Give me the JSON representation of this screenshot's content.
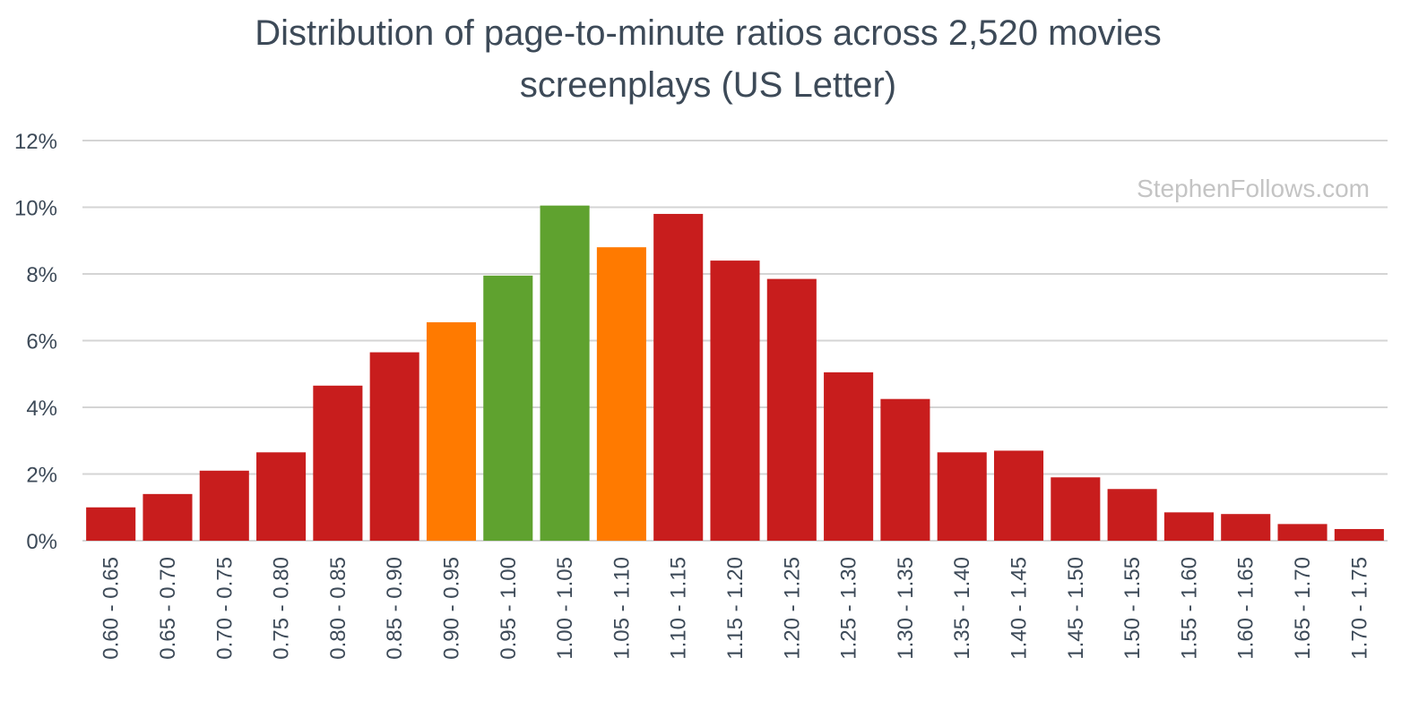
{
  "chart_data": {
    "type": "bar",
    "title_lines": [
      "Distribution of page-to-minute ratios across 2,520 movies",
      "screenplays (US Letter)"
    ],
    "watermark": "StephenFollows.com",
    "ylim": [
      0,
      12
    ],
    "ytick_values": [
      0,
      2,
      4,
      6,
      8,
      10,
      12
    ],
    "ytick_labels": [
      "0%",
      "2%",
      "4%",
      "6%",
      "8%",
      "10%",
      "12%"
    ],
    "grid": true,
    "categories": [
      "0.60 - 0.65",
      "0.65 - 0.70",
      "0.70 - 0.75",
      "0.75 - 0.80",
      "0.80 - 0.85",
      "0.85 - 0.90",
      "0.90 - 0.95",
      "0.95 - 1.00",
      "1.00 - 1.05",
      "1.05 - 1.10",
      "1.10 - 1.15",
      "1.15 - 1.20",
      "1.20 - 1.25",
      "1.25 - 1.30",
      "1.30 - 1.35",
      "1.35 - 1.40",
      "1.40 - 1.45",
      "1.45 - 1.50",
      "1.50 - 1.55",
      "1.55 - 1.60",
      "1.60 - 1.65",
      "1.65 - 1.70",
      "1.70 - 1.75"
    ],
    "values": [
      1.0,
      1.4,
      2.1,
      2.65,
      4.65,
      5.65,
      6.55,
      7.95,
      10.05,
      8.8,
      9.8,
      8.4,
      7.85,
      5.05,
      4.25,
      2.65,
      2.7,
      1.9,
      1.55,
      0.85,
      0.8,
      0.5,
      0.35
    ],
    "bar_colors": [
      "#c81d1d",
      "#c81d1d",
      "#c81d1d",
      "#c81d1d",
      "#c81d1d",
      "#c81d1d",
      "#ff7a00",
      "#5fa22f",
      "#5fa22f",
      "#ff7a00",
      "#c81d1d",
      "#c81d1d",
      "#c81d1d",
      "#c81d1d",
      "#c81d1d",
      "#c81d1d",
      "#c81d1d",
      "#c81d1d",
      "#c81d1d",
      "#c81d1d",
      "#c81d1d",
      "#c81d1d",
      "#c81d1d"
    ],
    "grid_color": "#d4d4d4",
    "text_color": "#3d4a58"
  }
}
